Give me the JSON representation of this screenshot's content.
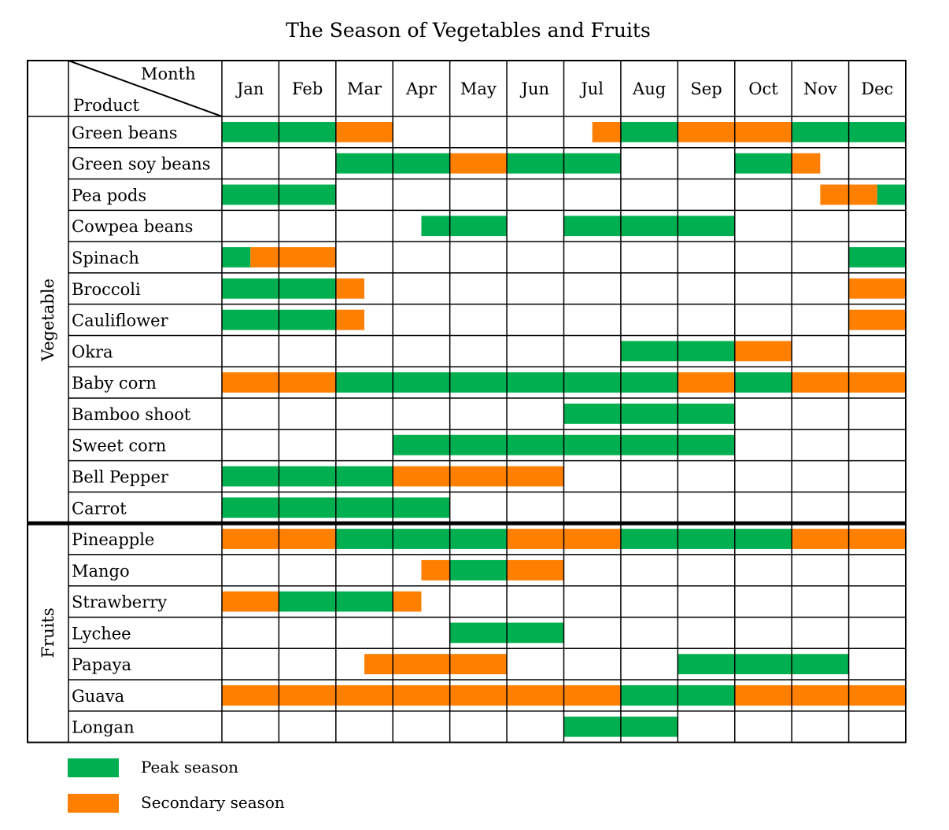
{
  "chart_data": {
    "type": "table",
    "title": "The Season of Vegetables and Fruits",
    "header": {
      "corner_top": "Month",
      "corner_bottom": "Product"
    },
    "months": [
      "Jan",
      "Feb",
      "Mar",
      "Apr",
      "May",
      "Jun",
      "Jul",
      "Aug",
      "Sep",
      "Oct",
      "Nov",
      "Dec"
    ],
    "colors": {
      "peak": "#00b050",
      "secondary": "#ff7f00"
    },
    "legend": [
      {
        "key": "peak",
        "label": "Peak season"
      },
      {
        "key": "secondary",
        "label": "Secondary season"
      }
    ],
    "groups": [
      {
        "name": "Vegetable",
        "rows": [
          {
            "product": "Green beans",
            "segments": [
              {
                "start": 0,
                "end": 2,
                "type": "peak"
              },
              {
                "start": 2,
                "end": 3,
                "type": "secondary"
              },
              {
                "start": 6.5,
                "end": 7,
                "type": "secondary"
              },
              {
                "start": 7,
                "end": 8,
                "type": "peak"
              },
              {
                "start": 8,
                "end": 10,
                "type": "secondary"
              },
              {
                "start": 10,
                "end": 12,
                "type": "peak"
              }
            ]
          },
          {
            "product": "Green soy beans",
            "segments": [
              {
                "start": 2,
                "end": 4,
                "type": "peak"
              },
              {
                "start": 4,
                "end": 5,
                "type": "secondary"
              },
              {
                "start": 5,
                "end": 7,
                "type": "peak"
              },
              {
                "start": 9,
                "end": 10,
                "type": "peak"
              },
              {
                "start": 10,
                "end": 10.5,
                "type": "secondary"
              }
            ]
          },
          {
            "product": "Pea pods",
            "segments": [
              {
                "start": 0,
                "end": 2,
                "type": "peak"
              },
              {
                "start": 10.5,
                "end": 11.5,
                "type": "secondary"
              },
              {
                "start": 11.5,
                "end": 12,
                "type": "peak"
              }
            ]
          },
          {
            "product": "Cowpea beans",
            "segments": [
              {
                "start": 3.5,
                "end": 5,
                "type": "peak"
              },
              {
                "start": 6,
                "end": 9,
                "type": "peak"
              }
            ]
          },
          {
            "product": "Spinach",
            "segments": [
              {
                "start": 0,
                "end": 0.5,
                "type": "peak"
              },
              {
                "start": 0.5,
                "end": 2,
                "type": "secondary"
              },
              {
                "start": 11,
                "end": 12,
                "type": "peak"
              }
            ]
          },
          {
            "product": "Broccoli",
            "segments": [
              {
                "start": 0,
                "end": 2,
                "type": "peak"
              },
              {
                "start": 2,
                "end": 2.5,
                "type": "secondary"
              },
              {
                "start": 11,
                "end": 12,
                "type": "secondary"
              }
            ]
          },
          {
            "product": "Cauliflower",
            "segments": [
              {
                "start": 0,
                "end": 2,
                "type": "peak"
              },
              {
                "start": 2,
                "end": 2.5,
                "type": "secondary"
              },
              {
                "start": 11,
                "end": 12,
                "type": "secondary"
              }
            ]
          },
          {
            "product": "Okra",
            "segments": [
              {
                "start": 7,
                "end": 9,
                "type": "peak"
              },
              {
                "start": 9,
                "end": 10,
                "type": "secondary"
              }
            ]
          },
          {
            "product": "Baby corn",
            "segments": [
              {
                "start": 0,
                "end": 2,
                "type": "secondary"
              },
              {
                "start": 2,
                "end": 8,
                "type": "peak"
              },
              {
                "start": 8,
                "end": 9,
                "type": "secondary"
              },
              {
                "start": 9,
                "end": 10,
                "type": "peak"
              },
              {
                "start": 10,
                "end": 12,
                "type": "secondary"
              }
            ]
          },
          {
            "product": "Bamboo shoot",
            "segments": [
              {
                "start": 6,
                "end": 9,
                "type": "peak"
              }
            ]
          },
          {
            "product": "Sweet corn",
            "segments": [
              {
                "start": 3,
                "end": 9,
                "type": "peak"
              }
            ]
          },
          {
            "product": "Bell Pepper",
            "segments": [
              {
                "start": 0,
                "end": 3,
                "type": "peak"
              },
              {
                "start": 3,
                "end": 6,
                "type": "secondary"
              }
            ]
          },
          {
            "product": "Carrot",
            "segments": [
              {
                "start": 0,
                "end": 4,
                "type": "peak"
              }
            ]
          }
        ]
      },
      {
        "name": "Fruits",
        "rows": [
          {
            "product": "Pineapple",
            "segments": [
              {
                "start": 0,
                "end": 2,
                "type": "secondary"
              },
              {
                "start": 2,
                "end": 5,
                "type": "peak"
              },
              {
                "start": 5,
                "end": 7,
                "type": "secondary"
              },
              {
                "start": 7,
                "end": 10,
                "type": "peak"
              },
              {
                "start": 10,
                "end": 12,
                "type": "secondary"
              }
            ]
          },
          {
            "product": "Mango",
            "segments": [
              {
                "start": 3.5,
                "end": 4,
                "type": "secondary"
              },
              {
                "start": 4,
                "end": 5,
                "type": "peak"
              },
              {
                "start": 5,
                "end": 6,
                "type": "secondary"
              }
            ]
          },
          {
            "product": "Strawberry",
            "segments": [
              {
                "start": 0,
                "end": 1,
                "type": "secondary"
              },
              {
                "start": 1,
                "end": 3,
                "type": "peak"
              },
              {
                "start": 3,
                "end": 3.5,
                "type": "secondary"
              }
            ]
          },
          {
            "product": "Lychee",
            "segments": [
              {
                "start": 4,
                "end": 6,
                "type": "peak"
              }
            ]
          },
          {
            "product": "Papaya",
            "segments": [
              {
                "start": 2.5,
                "end": 5,
                "type": "secondary"
              },
              {
                "start": 8,
                "end": 11,
                "type": "peak"
              }
            ]
          },
          {
            "product": "Guava",
            "segments": [
              {
                "start": 0,
                "end": 7,
                "type": "secondary"
              },
              {
                "start": 7,
                "end": 9,
                "type": "peak"
              },
              {
                "start": 9,
                "end": 12,
                "type": "secondary"
              }
            ]
          },
          {
            "product": "Longan",
            "segments": [
              {
                "start": 6,
                "end": 8,
                "type": "peak"
              }
            ]
          }
        ]
      }
    ]
  }
}
